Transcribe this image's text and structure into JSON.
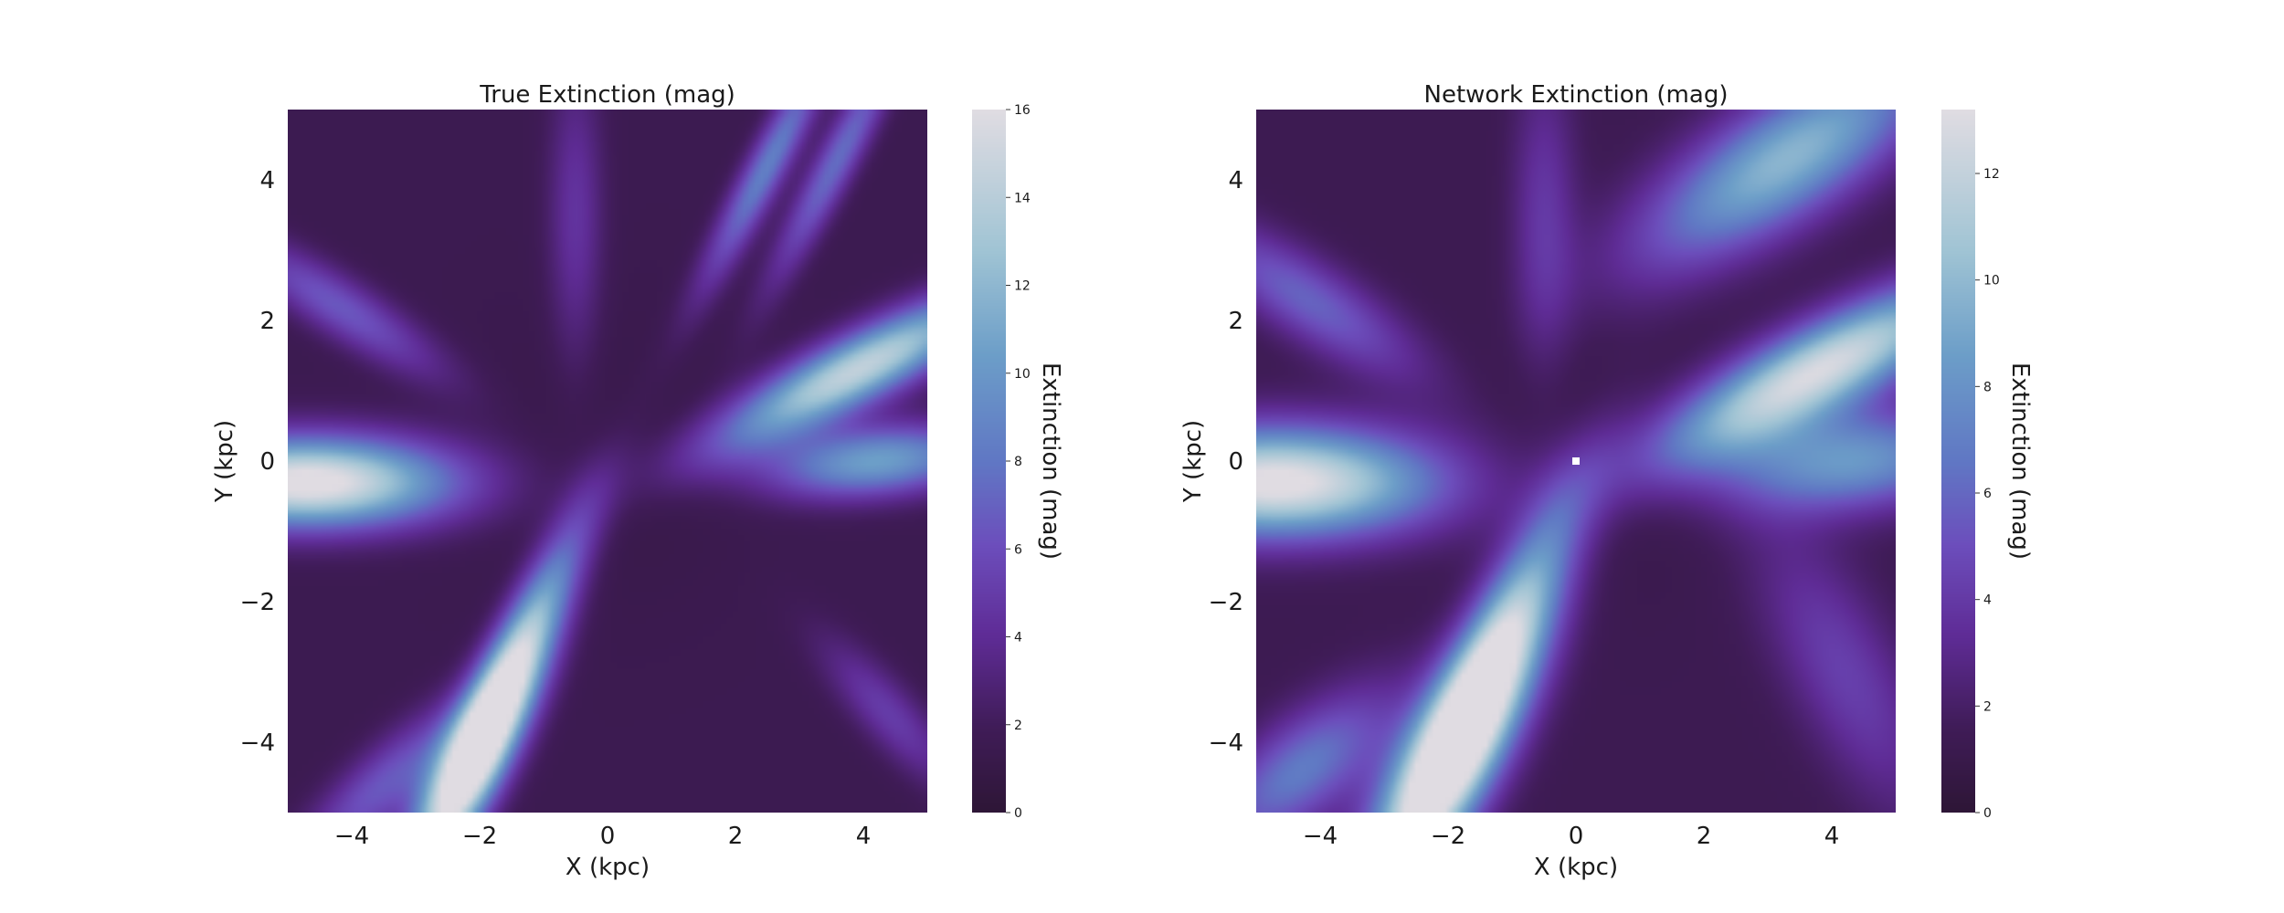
{
  "chart_data": [
    {
      "type": "heatmap",
      "title": "True Extinction (mag)",
      "xlabel": "X (kpc)",
      "ylabel": "Y (kpc)",
      "xlim": [
        -5,
        5
      ],
      "ylim": [
        -5,
        5
      ],
      "xticks": [
        -4,
        -2,
        0,
        2,
        4
      ],
      "yticks": [
        -4,
        -2,
        0,
        2,
        4
      ],
      "xtick_labels": [
        "−4",
        "−2",
        "0",
        "2",
        "4"
      ],
      "ytick_labels": [
        "−4",
        "−2",
        "0",
        "2",
        "4"
      ],
      "grid": false,
      "colormap": "twilight_shifted (dark purple → blue → light gray)",
      "colorbar": {
        "label": "Extinction (mag)",
        "range": [
          0,
          16
        ],
        "ticks": [
          0,
          2,
          4,
          6,
          8,
          10,
          12,
          14,
          16
        ],
        "tick_labels": [
          "0",
          "2",
          "4",
          "6",
          "8",
          "10",
          "12",
          "14",
          "16"
        ]
      },
      "background_value": 1.5,
      "features": [
        {
          "x": -4.7,
          "y": -0.3,
          "peak": 15.5,
          "length": 1.6,
          "width": 0.45,
          "angle_deg": 0
        },
        {
          "x": -2.1,
          "y": -4.3,
          "peak": 15.0,
          "length": 1.3,
          "width": 0.35,
          "angle_deg": 60
        },
        {
          "x": -1.4,
          "y": -2.7,
          "peak": 9.5,
          "length": 1.6,
          "width": 0.3,
          "angle_deg": 62
        },
        {
          "x": -3.5,
          "y": -4.6,
          "peak": 5.0,
          "length": 1.2,
          "width": 0.35,
          "angle_deg": 40
        },
        {
          "x": 3.9,
          "y": 1.3,
          "peak": 13.0,
          "length": 1.7,
          "width": 0.35,
          "angle_deg": 25
        },
        {
          "x": 4.2,
          "y": 0.0,
          "peak": 9.0,
          "length": 1.2,
          "width": 0.35,
          "angle_deg": 5
        },
        {
          "x": 2.5,
          "y": 4.2,
          "peak": 7.0,
          "length": 1.4,
          "width": 0.22,
          "angle_deg": 60
        },
        {
          "x": 3.6,
          "y": 4.3,
          "peak": 6.0,
          "length": 1.4,
          "width": 0.22,
          "angle_deg": 60
        },
        {
          "x": -4.2,
          "y": 2.2,
          "peak": 5.0,
          "length": 1.3,
          "width": 0.3,
          "angle_deg": -30
        },
        {
          "x": 4.4,
          "y": -3.6,
          "peak": 3.5,
          "length": 1.0,
          "width": 0.3,
          "angle_deg": -45
        },
        {
          "x": -0.5,
          "y": 3.5,
          "peak": 3.0,
          "length": 1.5,
          "width": 0.3,
          "angle_deg": 90
        }
      ]
    },
    {
      "type": "heatmap",
      "title": "Network Extinction (mag)",
      "xlabel": "X (kpc)",
      "ylabel": "Y (kpc)",
      "xlim": [
        -5,
        5
      ],
      "ylim": [
        -5,
        5
      ],
      "xticks": [
        -4,
        -2,
        0,
        2,
        4
      ],
      "yticks": [
        -4,
        -2,
        0,
        2,
        4
      ],
      "xtick_labels": [
        "−4",
        "−2",
        "0",
        "2",
        "4"
      ],
      "ytick_labels": [
        "−4",
        "−2",
        "0",
        "2",
        "4"
      ],
      "grid": false,
      "colormap": "twilight_shifted (dark purple → blue → light gray)",
      "colorbar": {
        "label": "Extinction (mag)",
        "range": [
          0,
          13.2
        ],
        "ticks": [
          0,
          2,
          4,
          6,
          8,
          10,
          12
        ],
        "tick_labels": [
          "0",
          "2",
          "4",
          "6",
          "8",
          "10",
          "12"
        ]
      },
      "background_value": 1.3,
      "marker": {
        "x": 0,
        "y": 0,
        "shape": "white square"
      },
      "features": [
        {
          "x": -4.7,
          "y": -0.3,
          "peak": 12.5,
          "length": 1.8,
          "width": 0.55,
          "angle_deg": 0
        },
        {
          "x": -2.0,
          "y": -4.3,
          "peak": 12.5,
          "length": 1.6,
          "width": 0.5,
          "angle_deg": 58
        },
        {
          "x": -1.2,
          "y": -2.6,
          "peak": 8.0,
          "length": 1.8,
          "width": 0.4,
          "angle_deg": 62
        },
        {
          "x": -4.3,
          "y": -4.4,
          "peak": 5.5,
          "length": 1.2,
          "width": 0.5,
          "angle_deg": 35
        },
        {
          "x": 3.8,
          "y": 1.3,
          "peak": 11.5,
          "length": 1.9,
          "width": 0.45,
          "angle_deg": 25
        },
        {
          "x": 4.3,
          "y": 0.0,
          "peak": 7.0,
          "length": 1.4,
          "width": 0.5,
          "angle_deg": 5
        },
        {
          "x": 3.3,
          "y": 4.3,
          "peak": 8.5,
          "length": 1.8,
          "width": 0.6,
          "angle_deg": 30
        },
        {
          "x": -4.2,
          "y": 2.3,
          "peak": 4.5,
          "length": 1.4,
          "width": 0.4,
          "angle_deg": -30
        },
        {
          "x": 4.2,
          "y": -3.0,
          "peak": 3.0,
          "length": 1.6,
          "width": 0.6,
          "angle_deg": -60
        },
        {
          "x": -0.5,
          "y": 3.5,
          "peak": 2.6,
          "length": 1.5,
          "width": 0.35,
          "angle_deg": 90
        }
      ]
    }
  ]
}
